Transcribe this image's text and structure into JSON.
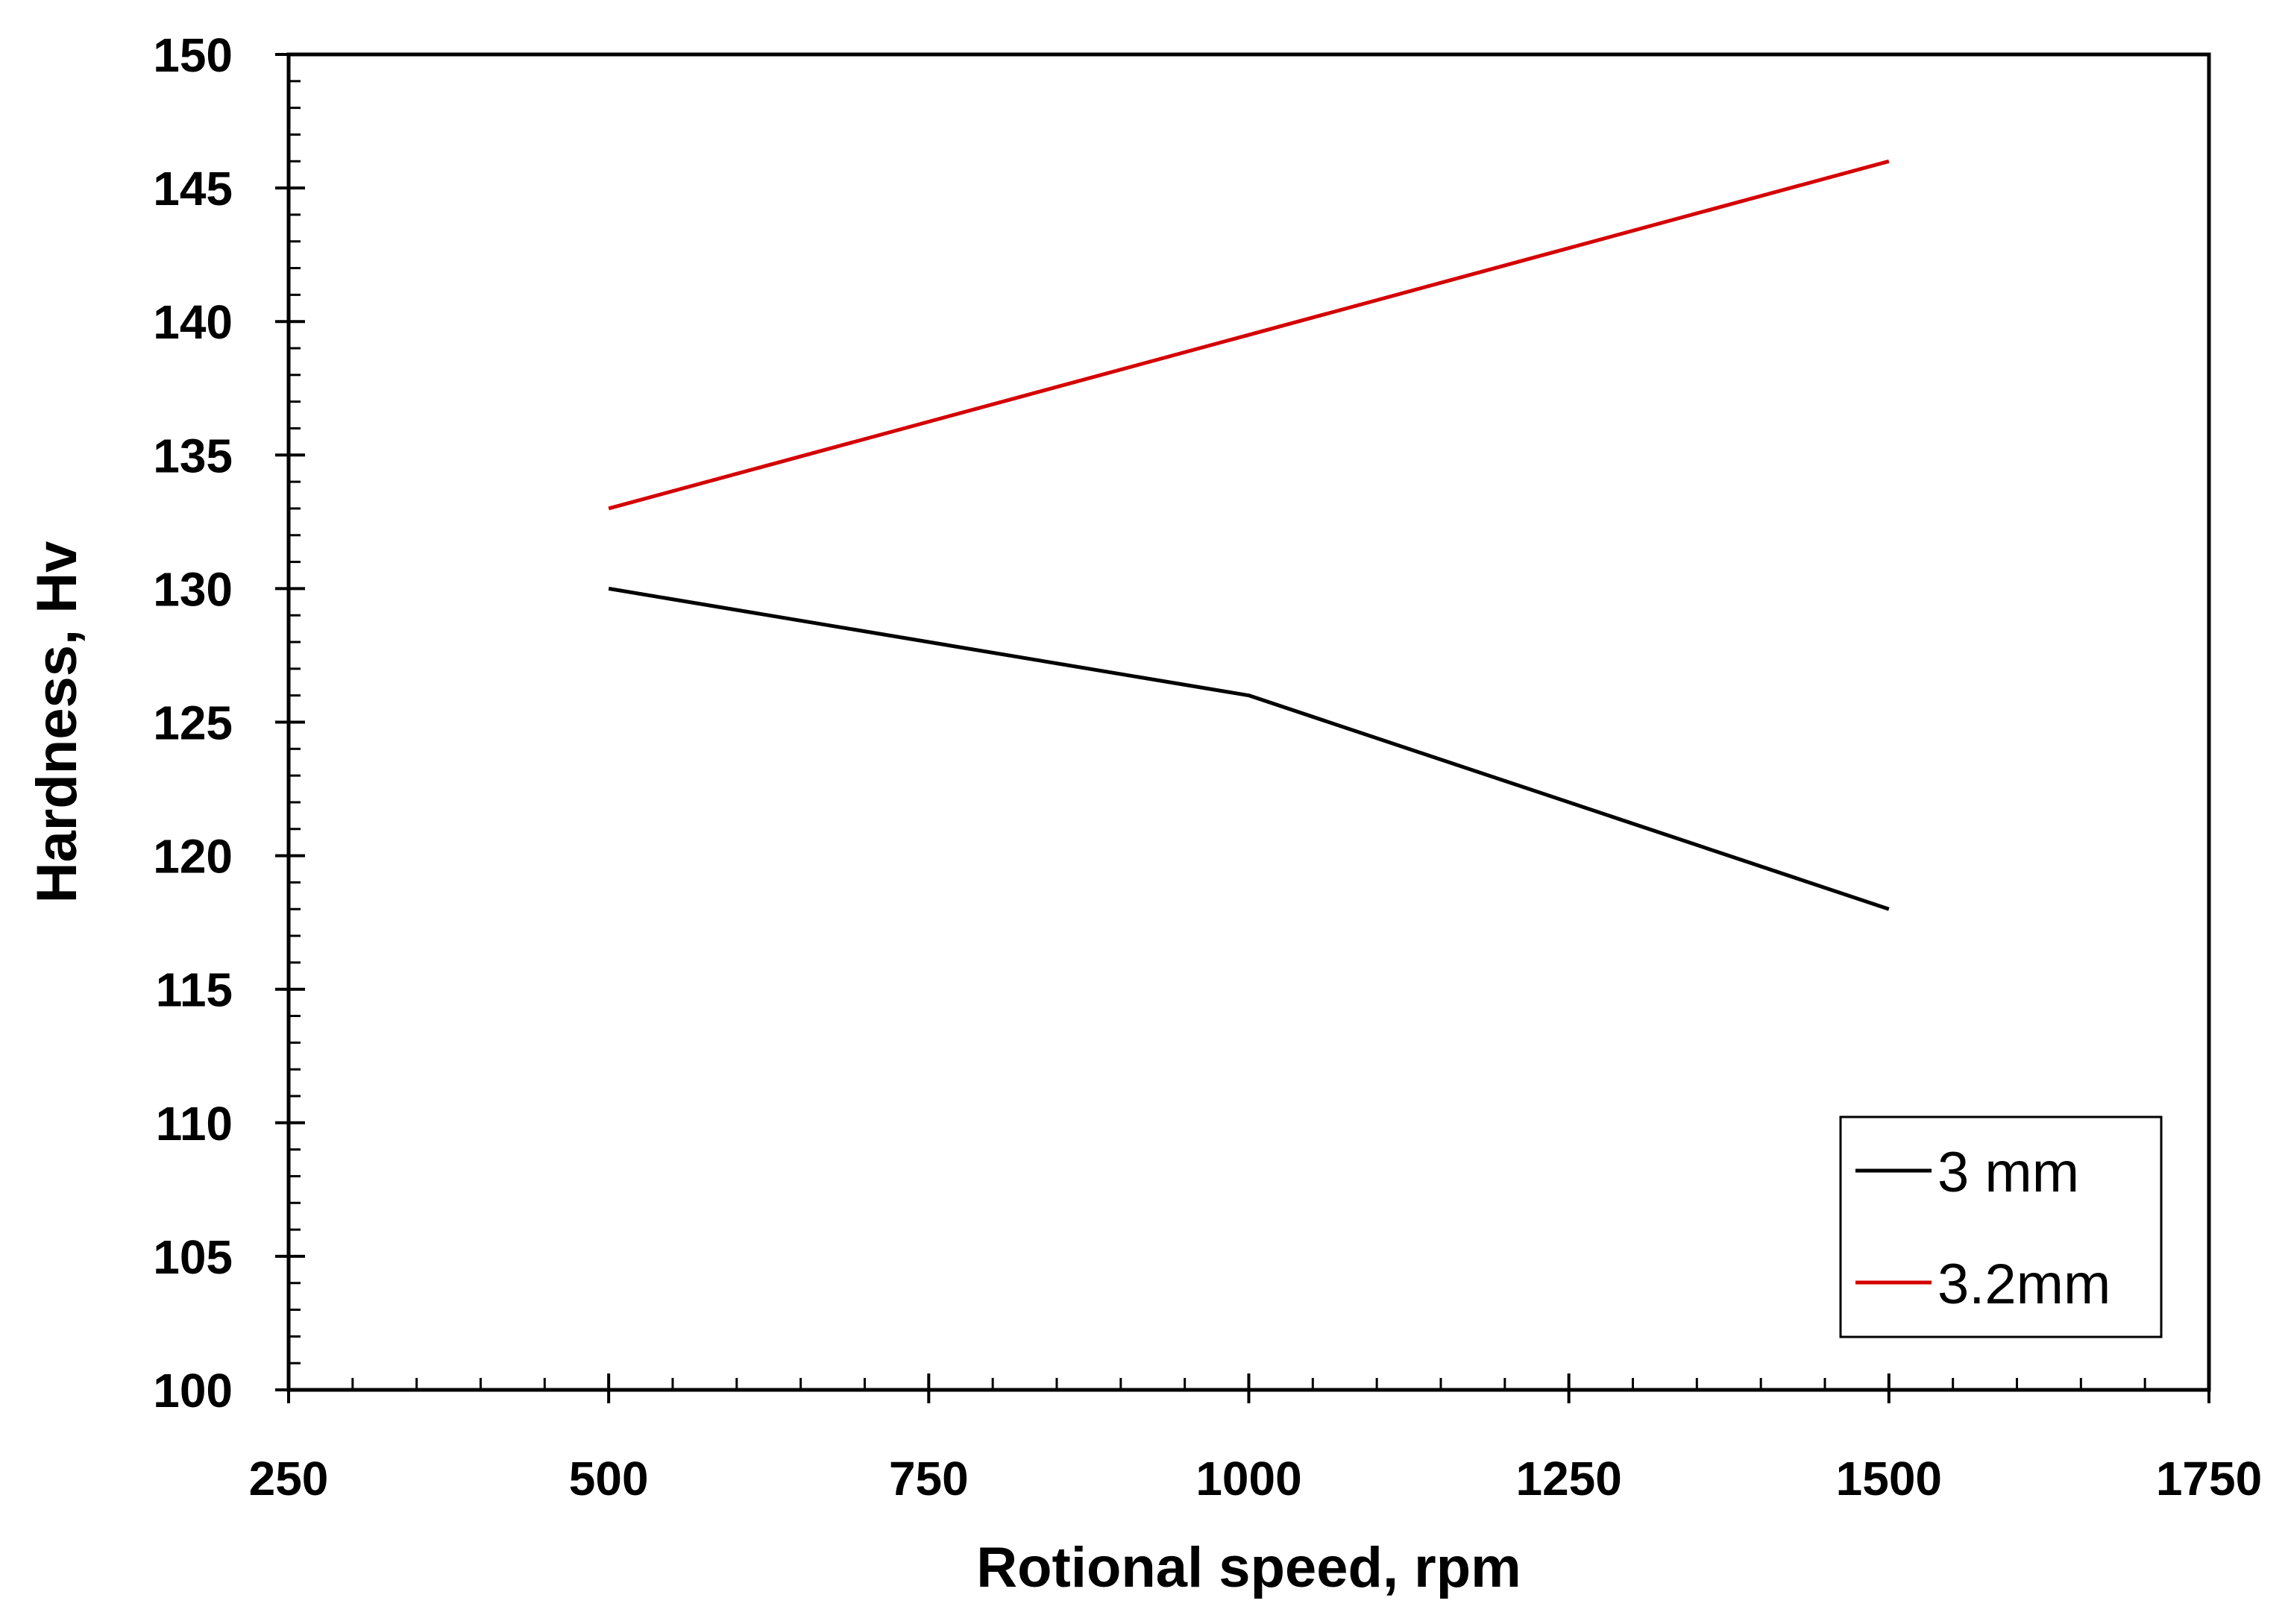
{
  "chart_data": {
    "type": "line",
    "title": "",
    "xlabel": "Rotional speed, rpm",
    "ylabel": "Hardness, Hv",
    "xlim": [
      250,
      1750
    ],
    "ylim": [
      100,
      150
    ],
    "xticks": [
      250,
      500,
      750,
      1000,
      1250,
      1500,
      1750
    ],
    "yticks": [
      100,
      105,
      110,
      115,
      120,
      125,
      130,
      135,
      140,
      145,
      150
    ],
    "x_minor_step": 50,
    "y_minor_step": 1,
    "grid": false,
    "legend_position": "bottom-right",
    "series": [
      {
        "name": "3 mm",
        "color": "#000000",
        "x": [
          500,
          1000,
          1500
        ],
        "values": [
          130,
          126,
          118
        ]
      },
      {
        "name": "3.2mm",
        "color": "#d40000",
        "x": [
          500,
          1500
        ],
        "values": [
          133,
          146
        ]
      }
    ]
  }
}
